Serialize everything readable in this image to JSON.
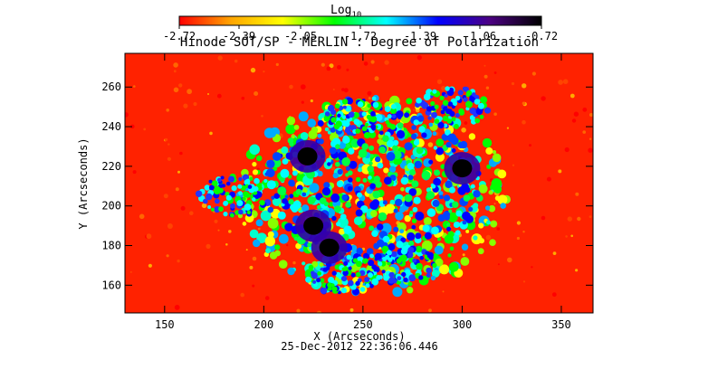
{
  "chart_data": {
    "type": "heatmap",
    "title": "Hinode SOT/SP - MERLIN : Degree of Polarization",
    "colorbar": {
      "label_main": "Log",
      "label_sub": "10",
      "tick_labels": [
        "-2.72",
        "-2.39",
        "-2.05",
        "-1.72",
        "-1.39",
        "-1.06",
        "-0.72"
      ],
      "range": [
        -2.72,
        -0.72
      ],
      "colormap": [
        "#ff0000",
        "#ffa500",
        "#ffff00",
        "#00ff00",
        "#00ffff",
        "#0000ff",
        "#4b0082",
        "#000000"
      ]
    },
    "xlabel": "X (Arcseconds)",
    "ylabel": "Y (Arcseconds)",
    "xlim": [
      130,
      366
    ],
    "ylim": [
      146,
      277
    ],
    "xticks": [
      150,
      200,
      250,
      300,
      350
    ],
    "yticks": [
      160,
      180,
      200,
      220,
      240,
      260
    ],
    "features": [
      {
        "name": "sunspot umbra",
        "x": 222,
        "y": 225,
        "value": -0.72
      },
      {
        "name": "sunspot umbra",
        "x": 300,
        "y": 219,
        "value": -0.72
      },
      {
        "name": "sunspot umbra",
        "x": 225,
        "y": 190,
        "value": -0.72
      },
      {
        "name": "sunspot umbra",
        "x": 233,
        "y": 179,
        "value": -0.72
      }
    ],
    "background_value": -2.72,
    "timestamp": "25-Dec-2012 22:36:06.446"
  }
}
